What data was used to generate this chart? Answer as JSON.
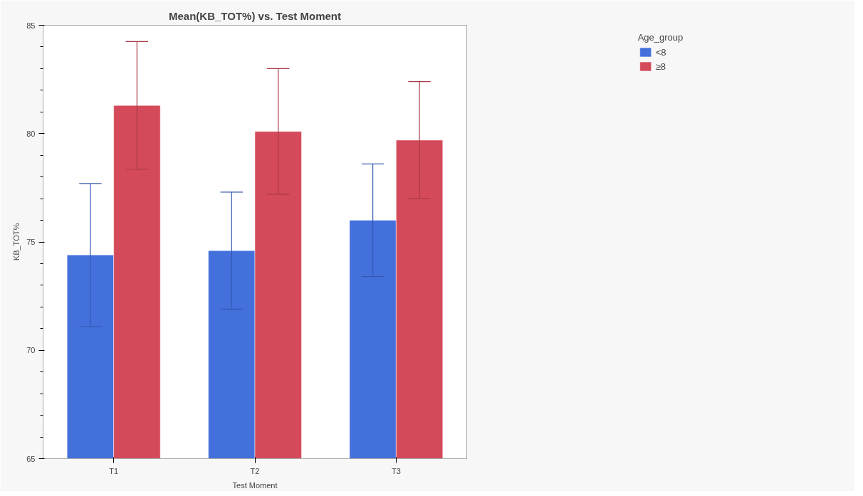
{
  "chart_data": {
    "type": "bar",
    "title": "Mean(KB_TOT%) vs. Test Moment",
    "xlabel": "Test Moment",
    "ylabel": "KB_TOT%",
    "legend_title": "Age_group",
    "categories": [
      "T1",
      "T2",
      "T3"
    ],
    "series": [
      {
        "name": "<8",
        "color": "#4470dc",
        "values": [
          74.4,
          74.6,
          76.0
        ],
        "errors": [
          3.3,
          2.7,
          2.6
        ]
      },
      {
        "name": "≥8",
        "color": "#d44a5a",
        "values": [
          81.3,
          80.1,
          79.7
        ],
        "errors": [
          2.95,
          2.9,
          2.7
        ]
      }
    ],
    "ylim": [
      65,
      85
    ],
    "yticks": [
      65,
      {
        "value": 66,
        "label": null
      },
      {
        "value": 67,
        "label": null
      },
      {
        "value": 68,
        "label": null
      },
      {
        "value": 69,
        "label": null
      },
      70,
      {
        "value": 71,
        "label": null
      },
      {
        "value": 72,
        "label": null
      },
      {
        "value": 73,
        "label": null
      },
      {
        "value": 74,
        "label": null
      },
      75,
      {
        "value": 76,
        "label": null
      },
      {
        "value": 77,
        "label": null
      },
      {
        "value": 78,
        "label": null
      },
      {
        "value": 79,
        "label": null
      },
      80,
      {
        "value": 81,
        "label": null
      },
      {
        "value": 82,
        "label": null
      },
      {
        "value": 83,
        "label": null
      },
      {
        "value": 84,
        "label": null
      },
      85
    ],
    "grid": false,
    "legend": "top right"
  }
}
